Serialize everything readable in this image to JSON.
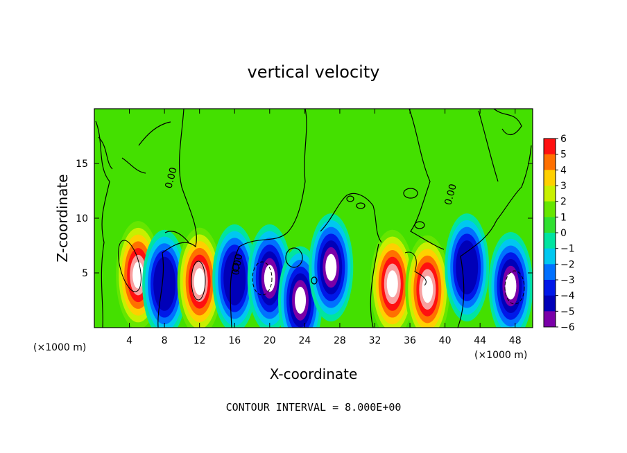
{
  "chart_data": {
    "type": "heatmap",
    "title": "vertical velocity",
    "xlabel": "X-coordinate",
    "ylabel": "Z-coordinate",
    "x_unit_left": "(×1000 m)",
    "x_unit_right": "(×1000 m)",
    "xlim": [
      0,
      50
    ],
    "ylim": [
      0,
      20
    ],
    "x_ticks": [
      "4",
      "8",
      "12",
      "16",
      "20",
      "24",
      "28",
      "32",
      "36",
      "40",
      "44",
      "48"
    ],
    "y_ticks": [
      "5",
      "10",
      "15"
    ],
    "colorbar": {
      "ticks": [
        "6",
        "5",
        "4",
        "3",
        "2",
        "1",
        "0",
        "−1",
        "−2",
        "−3",
        "−4",
        "−5",
        "−6"
      ],
      "range": [
        -6,
        6
      ]
    },
    "contour_label": "0.00",
    "footer": "CONTOUR INTERVAL = 8.000E+00",
    "features": [
      {
        "kind": "updraft",
        "x_center": 5.0,
        "z_center": 4.8,
        "peak": 12
      },
      {
        "kind": "downdraft",
        "x_center": 8.0,
        "z_center": 4.0,
        "peak": -5
      },
      {
        "kind": "updraft",
        "x_center": 12.0,
        "z_center": 4.2,
        "peak": 9
      },
      {
        "kind": "downdraft",
        "x_center": 16.0,
        "z_center": 4.5,
        "peak": -5
      },
      {
        "kind": "downdraft",
        "x_center": 20.0,
        "z_center": 4.5,
        "peak": -12
      },
      {
        "kind": "downdraft",
        "x_center": 23.5,
        "z_center": 2.5,
        "peak": -9
      },
      {
        "kind": "downdraft",
        "x_center": 27.0,
        "z_center": 5.5,
        "peak": -10
      },
      {
        "kind": "updraft",
        "x_center": 34.0,
        "z_center": 4.0,
        "peak": 10
      },
      {
        "kind": "updraft",
        "x_center": 38.0,
        "z_center": 3.5,
        "peak": 9
      },
      {
        "kind": "downdraft",
        "x_center": 42.5,
        "z_center": 5.5,
        "peak": -5
      },
      {
        "kind": "downdraft",
        "x_center": 47.5,
        "z_center": 3.8,
        "peak": -12
      }
    ]
  }
}
